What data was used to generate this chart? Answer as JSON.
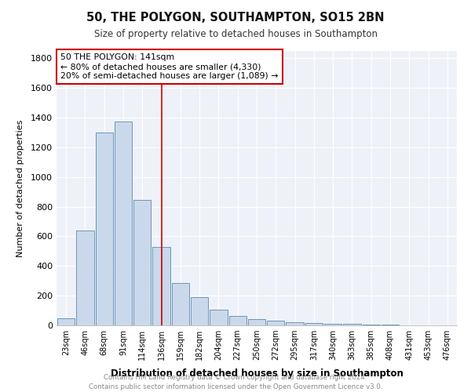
{
  "title": "50, THE POLYGON, SOUTHAMPTON, SO15 2BN",
  "subtitle": "Size of property relative to detached houses in Southampton",
  "xlabel": "Distribution of detached houses by size in Southampton",
  "ylabel": "Number of detached properties",
  "bar_color": "#c9d9eb",
  "bar_edge_color": "#5a8ab0",
  "annotation_box_color": "#cc0000",
  "vline_color": "#cc0000",
  "vline_x_index": 5,
  "annotation_text": "50 THE POLYGON: 141sqm\n← 80% of detached houses are smaller (4,330)\n20% of semi-detached houses are larger (1,089) →",
  "categories": [
    "23sqm",
    "46sqm",
    "68sqm",
    "91sqm",
    "114sqm",
    "136sqm",
    "159sqm",
    "182sqm",
    "204sqm",
    "227sqm",
    "250sqm",
    "272sqm",
    "295sqm",
    "317sqm",
    "340sqm",
    "363sqm",
    "385sqm",
    "408sqm",
    "431sqm",
    "453sqm",
    "476sqm"
  ],
  "values": [
    50,
    640,
    1300,
    1375,
    845,
    530,
    285,
    190,
    105,
    65,
    40,
    30,
    20,
    15,
    10,
    8,
    5,
    3,
    2,
    1,
    1
  ],
  "ylim": [
    0,
    1850
  ],
  "yticks": [
    0,
    200,
    400,
    600,
    800,
    1000,
    1200,
    1400,
    1600,
    1800
  ],
  "footnote1": "Contains HM Land Registry data © Crown copyright and database right 2024.",
  "footnote2": "Contains public sector information licensed under the Open Government Licence v3.0.",
  "background_color": "#ffffff",
  "plot_background": "#eef1f8"
}
